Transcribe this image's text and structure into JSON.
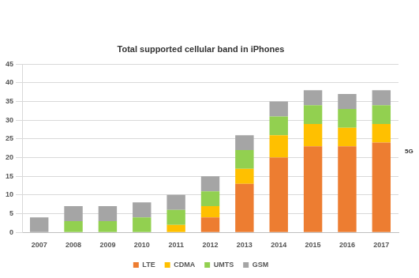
{
  "chart_data": {
    "type": "bar",
    "title": "Total supported cellular band in iPhones",
    "categories": [
      "2007",
      "2008",
      "2009",
      "2010",
      "2011",
      "2012",
      "2013",
      "2014",
      "2015",
      "2016",
      "2017"
    ],
    "series": [
      {
        "name": "LTE",
        "color": "#ed7d31",
        "values": [
          0,
          0,
          0,
          0,
          0,
          4,
          13,
          20,
          23,
          23,
          24
        ]
      },
      {
        "name": "CDMA",
        "color": "#ffc000",
        "values": [
          0,
          0,
          0,
          0,
          2,
          3,
          4,
          6,
          6,
          5,
          5
        ]
      },
      {
        "name": "UMTS",
        "color": "#92d050",
        "values": [
          0,
          3,
          3,
          4,
          4,
          4,
          5,
          5,
          5,
          5,
          5
        ]
      },
      {
        "name": "GSM",
        "color": "#a5a5a5",
        "values": [
          4,
          4,
          4,
          4,
          4,
          4,
          4,
          4,
          4,
          4,
          4
        ]
      }
    ],
    "ylim": [
      0,
      45
    ],
    "yticks": [
      0,
      5,
      10,
      15,
      20,
      25,
      30,
      35,
      40,
      45
    ],
    "stacked": true,
    "grid": true,
    "legend": "bottom",
    "annotations": [
      "5G"
    ]
  }
}
